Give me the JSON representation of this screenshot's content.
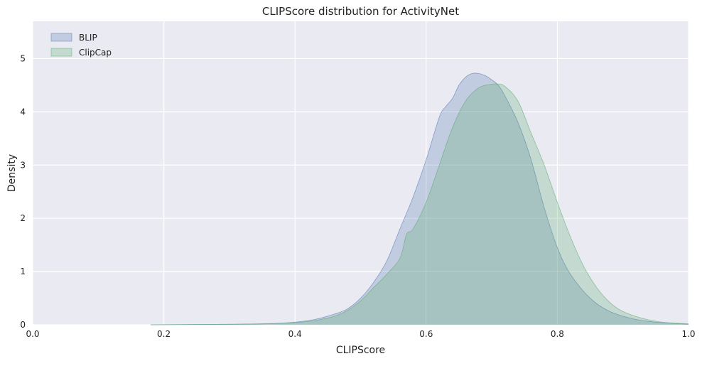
{
  "chart_data": {
    "type": "area",
    "title": "CLIPScore distribution for ActivityNet",
    "xlabel": "CLIPScore",
    "ylabel": "Density",
    "xlim": [
      0.0,
      1.0
    ],
    "ylim": [
      0,
      5.7
    ],
    "xticks": [
      "0.0",
      "0.2",
      "0.4",
      "0.6",
      "0.8",
      "1.0"
    ],
    "yticks": [
      "0",
      "1",
      "2",
      "3",
      "4",
      "5"
    ],
    "grid": true,
    "legend_position": "top-left",
    "background_color": "#EAEAF2",
    "grid_color": "#FFFFFF",
    "series": [
      {
        "name": "BLIP",
        "color": "#4C72B0",
        "fill_opacity": 0.25,
        "x": [
          0.18,
          0.3,
          0.36,
          0.4,
          0.43,
          0.46,
          0.48,
          0.5,
          0.52,
          0.54,
          0.56,
          0.58,
          0.6,
          0.62,
          0.63,
          0.64,
          0.65,
          0.66,
          0.67,
          0.68,
          0.69,
          0.7,
          0.71,
          0.72,
          0.74,
          0.76,
          0.78,
          0.8,
          0.82,
          0.85,
          0.88,
          0.92,
          0.96,
          1.0
        ],
        "y": [
          0.0,
          0.01,
          0.02,
          0.05,
          0.1,
          0.2,
          0.3,
          0.5,
          0.8,
          1.2,
          1.8,
          2.4,
          3.1,
          3.9,
          4.1,
          4.25,
          4.5,
          4.65,
          4.72,
          4.72,
          4.68,
          4.6,
          4.5,
          4.3,
          3.8,
          3.1,
          2.2,
          1.45,
          0.95,
          0.5,
          0.25,
          0.1,
          0.04,
          0.01
        ]
      },
      {
        "name": "ClipCap",
        "color": "#55A868",
        "fill_opacity": 0.25,
        "x": [
          0.18,
          0.3,
          0.36,
          0.4,
          0.43,
          0.46,
          0.48,
          0.5,
          0.52,
          0.54,
          0.56,
          0.57,
          0.58,
          0.6,
          0.62,
          0.64,
          0.66,
          0.68,
          0.7,
          0.71,
          0.72,
          0.74,
          0.76,
          0.78,
          0.8,
          0.82,
          0.84,
          0.86,
          0.88,
          0.9,
          0.93,
          0.96,
          1.0
        ],
        "y": [
          0.0,
          0.01,
          0.02,
          0.04,
          0.08,
          0.16,
          0.27,
          0.45,
          0.7,
          0.95,
          1.25,
          1.7,
          1.8,
          2.3,
          3.0,
          3.7,
          4.2,
          4.45,
          4.52,
          4.52,
          4.48,
          4.2,
          3.6,
          3.0,
          2.3,
          1.65,
          1.1,
          0.7,
          0.42,
          0.25,
          0.12,
          0.05,
          0.02
        ]
      }
    ]
  }
}
